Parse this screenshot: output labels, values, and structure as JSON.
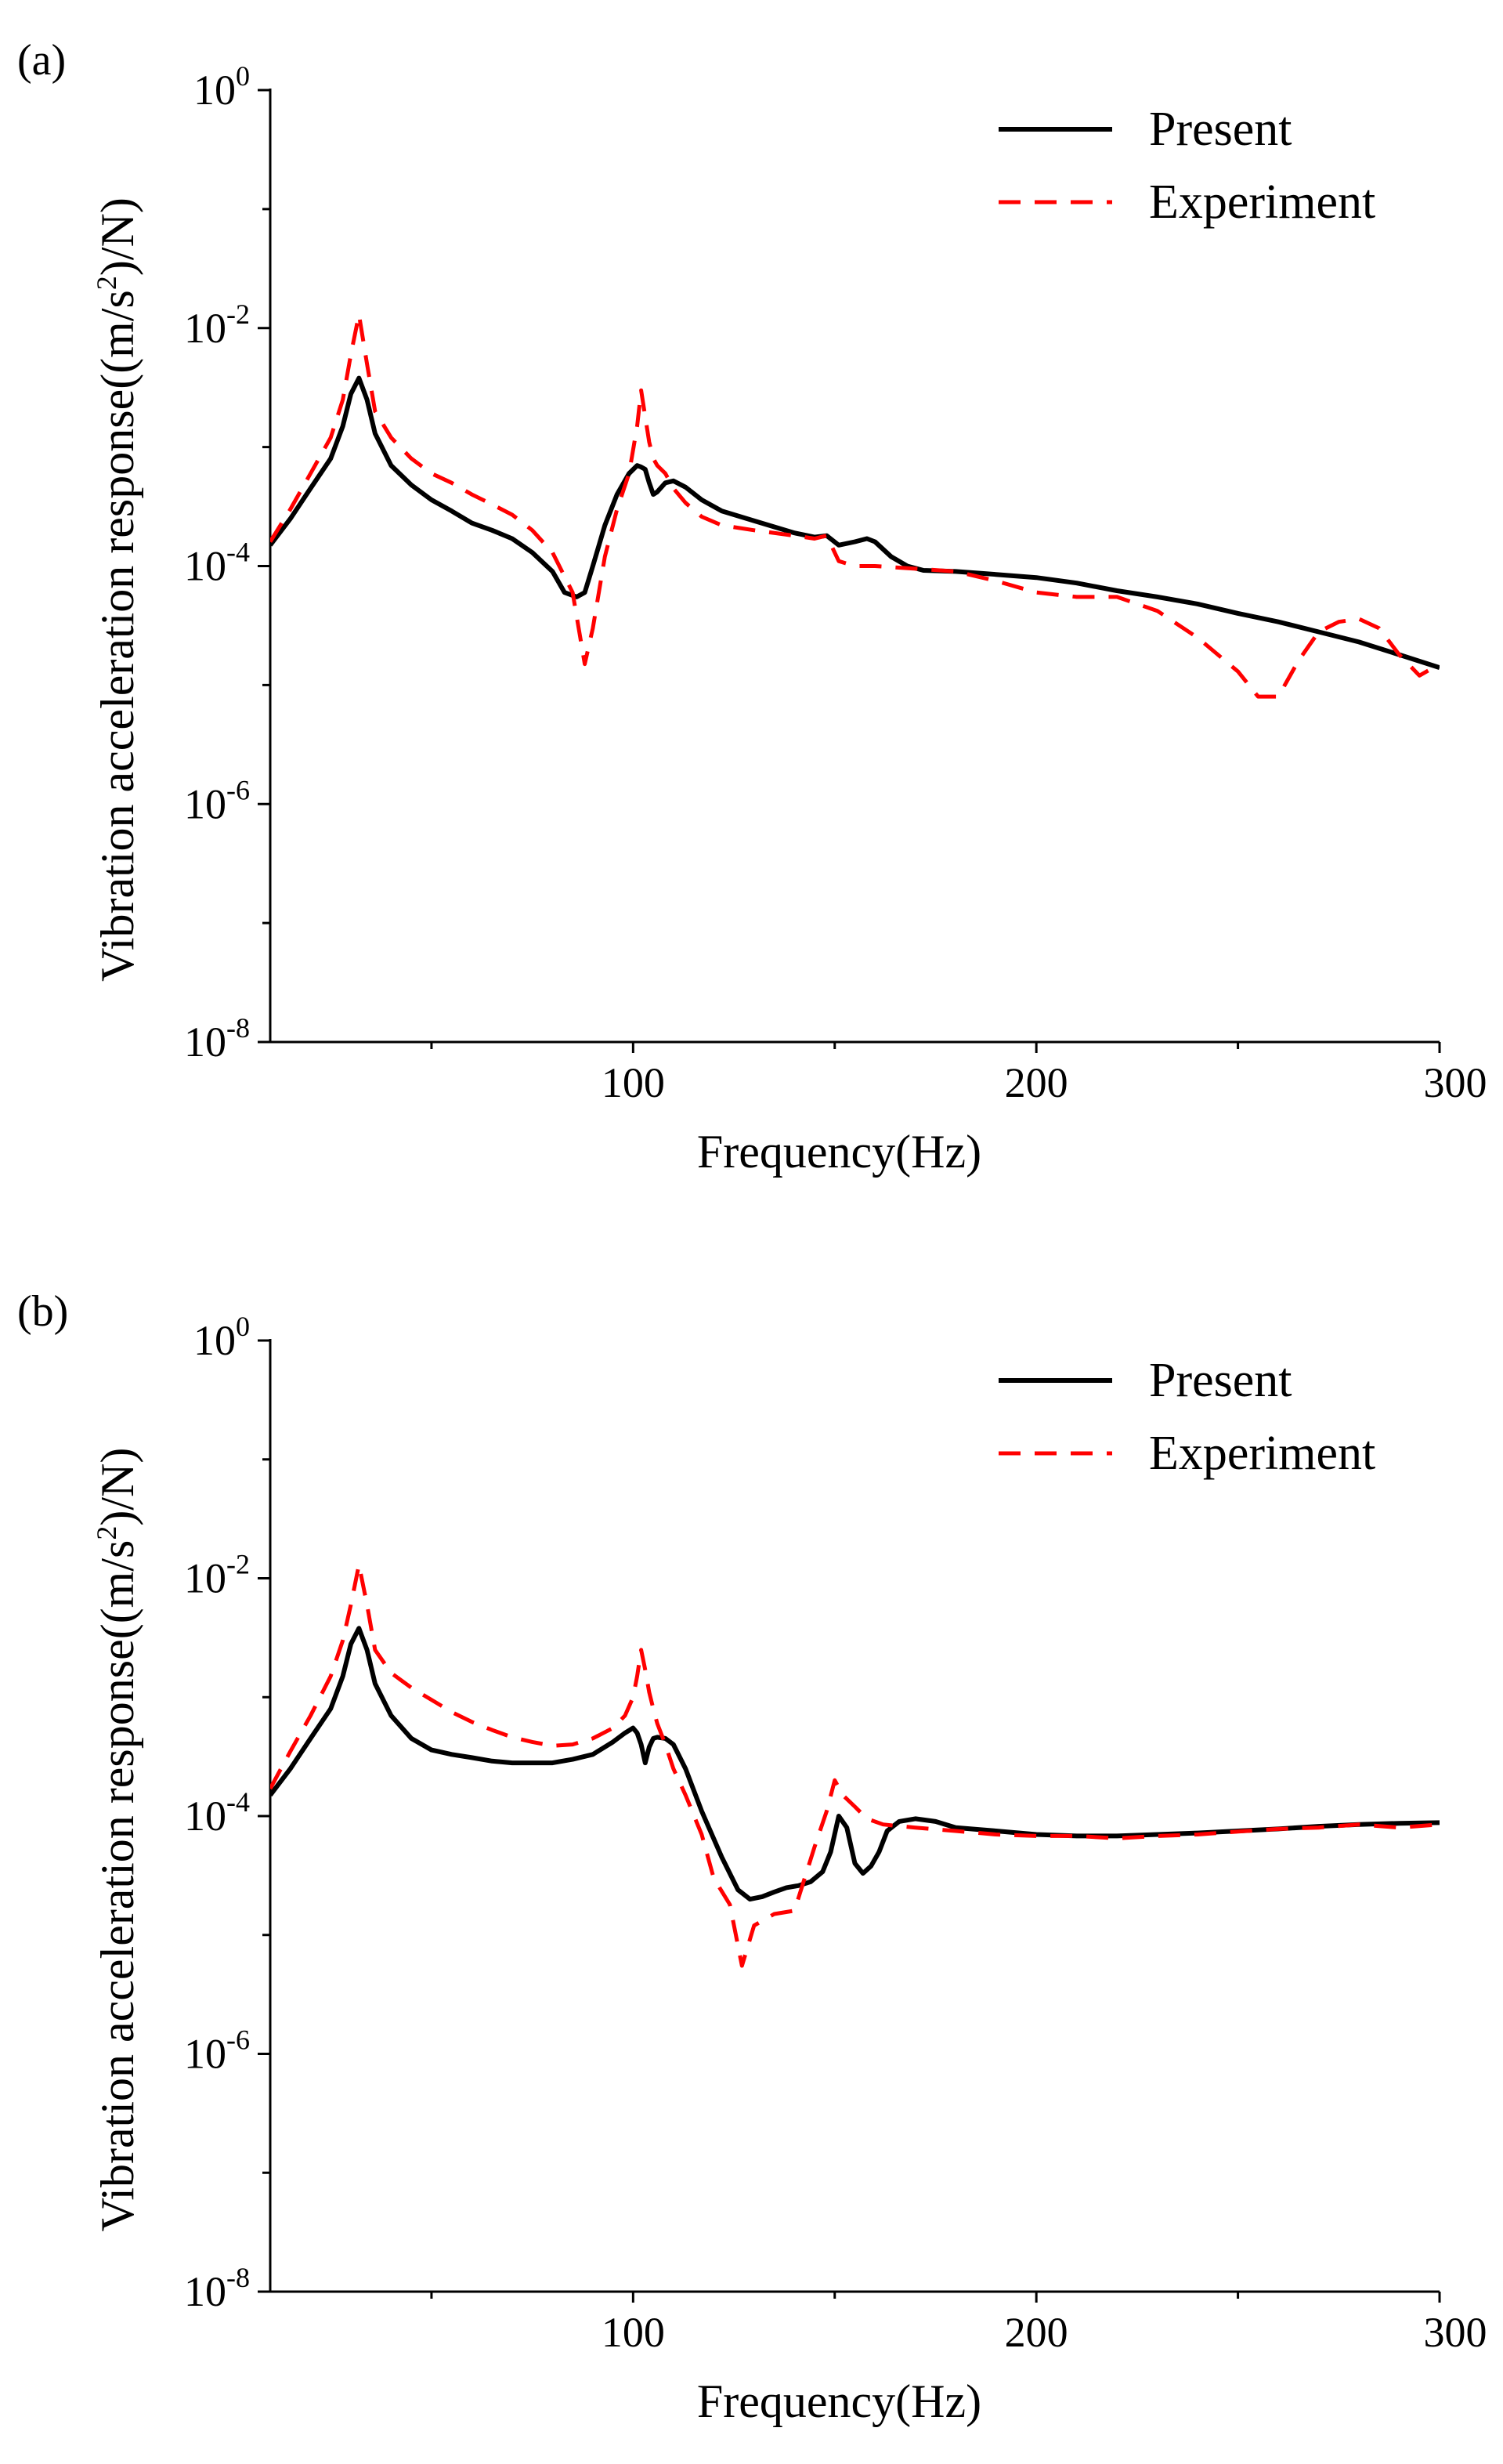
{
  "chart_data": [
    {
      "type": "line",
      "panel_label": "(a)",
      "xlabel": "Frequency(Hz)",
      "ylabel": {
        "prefix": "Vibration acceleration response((m/s",
        "sup": "2",
        "suffix": ")/N)"
      },
      "xlim": [
        10,
        300
      ],
      "ylim": [
        1e-08,
        1
      ],
      "yscale": "log",
      "xticks": [
        {
          "value": 100,
          "label": "100"
        },
        {
          "value": 200,
          "label": "200"
        },
        {
          "value": 300,
          "label": "300"
        }
      ],
      "yticks": [
        {
          "value": 1,
          "base": "10",
          "exp": "0"
        },
        {
          "value": 0.01,
          "base": "10",
          "exp": "-2"
        },
        {
          "value": 0.0001,
          "base": "10",
          "exp": "-4"
        },
        {
          "value": 1e-06,
          "base": "10",
          "exp": "-6"
        },
        {
          "value": 1e-08,
          "base": "10",
          "exp": "-8"
        }
      ],
      "legend_position": "top-right",
      "series": [
        {
          "name": "Present",
          "color": "#000000",
          "style": "solid",
          "x": [
            10,
            15,
            20,
            25,
            28,
            30,
            32,
            34,
            36,
            40,
            45,
            50,
            55,
            60,
            65,
            70,
            75,
            80,
            83,
            86,
            88,
            90,
            93,
            96,
            99,
            101,
            102,
            103,
            104,
            105,
            106,
            108,
            110,
            113,
            117,
            122,
            130,
            140,
            145,
            148,
            151,
            155,
            158,
            160,
            164,
            168,
            172,
            180,
            190,
            200,
            210,
            220,
            230,
            240,
            250,
            260,
            270,
            280,
            290,
            300
          ],
          "y": [
            0.00015,
            0.00025,
            0.00045,
            0.0008,
            0.0015,
            0.0028,
            0.0038,
            0.0025,
            0.0013,
            0.0007,
            0.00048,
            0.00036,
            0.00029,
            0.00023,
            0.0002,
            0.00017,
            0.00013,
            9e-05,
            6e-05,
            5.5e-05,
            6e-05,
            0.0001,
            0.00022,
            0.0004,
            0.0006,
            0.0007,
            0.00068,
            0.00065,
            0.0005,
            0.0004,
            0.00042,
            0.0005,
            0.00052,
            0.00046,
            0.00036,
            0.00029,
            0.00024,
            0.00019,
            0.000175,
            0.00018,
            0.00015,
            0.00016,
            0.00017,
            0.00016,
            0.00012,
            0.0001,
            9.2e-05,
            9e-05,
            8.5e-05,
            8e-05,
            7.2e-05,
            6.2e-05,
            5.5e-05,
            4.8e-05,
            4e-05,
            3.4e-05,
            2.8e-05,
            2.3e-05,
            1.8e-05,
            1.4e-05
          ]
        },
        {
          "name": "Experiment",
          "color": "#ff0000",
          "style": "dashed",
          "x": [
            10,
            15,
            20,
            25,
            28,
            30,
            32,
            34,
            36,
            40,
            45,
            50,
            55,
            60,
            65,
            70,
            75,
            80,
            85,
            88,
            90,
            93,
            96,
            99,
            101,
            102,
            103,
            104,
            105,
            106,
            108,
            110,
            113,
            117,
            122,
            130,
            140,
            145,
            148,
            151,
            155,
            160,
            170,
            180,
            190,
            200,
            210,
            220,
            230,
            240,
            250,
            255,
            260,
            265,
            270,
            275,
            280,
            285,
            290,
            295,
            300
          ],
          "y": [
            0.00016,
            0.0003,
            0.0006,
            0.0012,
            0.0025,
            0.006,
            0.013,
            0.005,
            0.002,
            0.0012,
            0.0008,
            0.0006,
            0.0005,
            0.0004,
            0.00033,
            0.00027,
            0.0002,
            0.00013,
            6e-05,
            1.5e-05,
            3e-05,
            0.00012,
            0.0003,
            0.0006,
            0.0015,
            0.003,
            0.0018,
            0.0011,
            0.0008,
            0.0007,
            0.0006,
            0.00045,
            0.00034,
            0.00026,
            0.00022,
            0.0002,
            0.00018,
            0.00017,
            0.00018,
            0.00011,
            0.0001,
            0.0001,
            9.5e-05,
            9e-05,
            7.5e-05,
            6e-05,
            5.5e-05,
            5.5e-05,
            4.2e-05,
            2.5e-05,
            1.3e-05,
            8e-06,
            8e-06,
            1.6e-05,
            2.8e-05,
            3.4e-05,
            3.6e-05,
            3e-05,
            1.8e-05,
            1.2e-05,
            1.5e-05
          ]
        }
      ]
    },
    {
      "type": "line",
      "panel_label": "(b)",
      "xlabel": "Frequency(Hz)",
      "ylabel": {
        "prefix": "Vibration acceleration response((m/s",
        "sup": "2",
        "suffix": ")/N)"
      },
      "xlim": [
        10,
        300
      ],
      "ylim": [
        1e-08,
        1
      ],
      "yscale": "log",
      "xticks": [
        {
          "value": 100,
          "label": "100"
        },
        {
          "value": 200,
          "label": "200"
        },
        {
          "value": 300,
          "label": "300"
        }
      ],
      "yticks": [
        {
          "value": 1,
          "base": "10",
          "exp": "0"
        },
        {
          "value": 0.01,
          "base": "10",
          "exp": "-2"
        },
        {
          "value": 0.0001,
          "base": "10",
          "exp": "-4"
        },
        {
          "value": 1e-06,
          "base": "10",
          "exp": "-6"
        },
        {
          "value": 1e-08,
          "base": "10",
          "exp": "-8"
        }
      ],
      "legend_position": "top-right",
      "series": [
        {
          "name": "Present",
          "color": "#000000",
          "style": "solid",
          "x": [
            10,
            15,
            20,
            25,
            28,
            30,
            32,
            34,
            36,
            40,
            45,
            50,
            55,
            60,
            65,
            70,
            75,
            80,
            85,
            90,
            95,
            98,
            100,
            101,
            102,
            103,
            104,
            105,
            106,
            108,
            110,
            113,
            117,
            122,
            126,
            129,
            132,
            135,
            138,
            141,
            144,
            147,
            149,
            151,
            153,
            155,
            157,
            159,
            161,
            163,
            166,
            170,
            175,
            180,
            190,
            200,
            210,
            220,
            230,
            240,
            250,
            260,
            270,
            280,
            290,
            300
          ],
          "y": [
            0.00015,
            0.00025,
            0.00045,
            0.0008,
            0.0015,
            0.0028,
            0.0038,
            0.0025,
            0.0013,
            0.0007,
            0.00045,
            0.00036,
            0.00033,
            0.00031,
            0.00029,
            0.00028,
            0.00028,
            0.00028,
            0.0003,
            0.00033,
            0.00042,
            0.0005,
            0.00055,
            0.0005,
            0.0004,
            0.00028,
            0.00038,
            0.00045,
            0.00046,
            0.00045,
            0.0004,
            0.00025,
            0.00011,
            4.5e-05,
            2.4e-05,
            2e-05,
            2.1e-05,
            2.3e-05,
            2.5e-05,
            2.6e-05,
            2.8e-05,
            3.4e-05,
            5e-05,
            0.0001,
            8e-05,
            4e-05,
            3.3e-05,
            3.8e-05,
            5e-05,
            7.5e-05,
            9e-05,
            9.5e-05,
            9e-05,
            8e-05,
            7.5e-05,
            7e-05,
            6.8e-05,
            6.8e-05,
            7e-05,
            7.2e-05,
            7.5e-05,
            7.8e-05,
            8.2e-05,
            8.5e-05,
            8.7e-05,
            8.8e-05
          ]
        },
        {
          "name": "Experiment",
          "color": "#ff0000",
          "style": "dashed",
          "x": [
            10,
            15,
            20,
            25,
            28,
            30,
            32,
            34,
            36,
            40,
            45,
            50,
            55,
            60,
            65,
            70,
            75,
            80,
            85,
            90,
            95,
            98,
            100,
            101,
            102,
            103,
            104,
            105,
            106,
            108,
            110,
            113,
            117,
            120,
            124,
            127,
            130,
            135,
            140,
            145,
            148,
            150,
            152,
            155,
            158,
            162,
            165,
            170,
            180,
            190,
            200,
            210,
            220,
            230,
            240,
            250,
            260,
            270,
            280,
            290,
            300
          ],
          "y": [
            0.00017,
            0.00035,
            0.0007,
            0.0015,
            0.003,
            0.006,
            0.013,
            0.006,
            0.0025,
            0.0016,
            0.0012,
            0.00095,
            0.00075,
            0.00062,
            0.00053,
            0.00046,
            0.00042,
            0.00039,
            0.0004,
            0.00045,
            0.00055,
            0.0007,
            0.001,
            0.0015,
            0.0025,
            0.0017,
            0.0011,
            0.0008,
            0.0006,
            0.0004,
            0.00025,
            0.00015,
            7e-05,
            3e-05,
            1.8e-05,
            5.5e-06,
            1.2e-05,
            1.5e-05,
            1.6e-05,
            5.5e-05,
            0.00011,
            0.0002,
            0.00015,
            0.00012,
            9.5e-05,
            8.5e-05,
            8.3e-05,
            8e-05,
            7.5e-05,
            7e-05,
            6.8e-05,
            6.8e-05,
            6.5e-05,
            6.8e-05,
            7e-05,
            7.4e-05,
            7.8e-05,
            8e-05,
            8.5e-05,
            8e-05,
            8.5e-05
          ]
        }
      ]
    }
  ]
}
